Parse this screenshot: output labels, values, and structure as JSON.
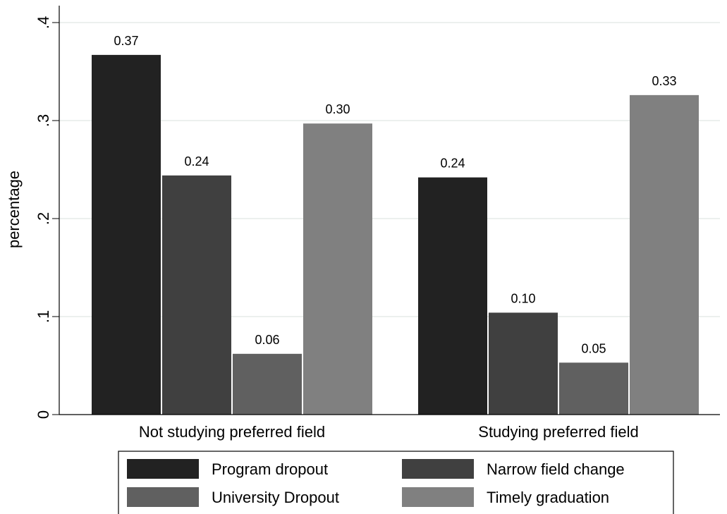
{
  "chart_data": {
    "type": "bar",
    "title": "",
    "xlabel": "",
    "ylabel": "percentage",
    "ylim": [
      0,
      0.42
    ],
    "yticks": [
      0,
      0.1,
      0.2,
      0.3,
      0.4
    ],
    "ytick_labels": [
      "0",
      ".1",
      ".2",
      ".3",
      ".4"
    ],
    "grid": true,
    "legend_position": "bottom",
    "categories": [
      "Not studying preferred field",
      "Studying preferred field"
    ],
    "series": [
      {
        "name": "Program dropout",
        "color": "#222222",
        "values": [
          0.367,
          0.242
        ],
        "labels": [
          "0.37",
          "0.24"
        ]
      },
      {
        "name": "Narrow field change",
        "color": "#404040",
        "values": [
          0.244,
          0.104
        ],
        "labels": [
          "0.24",
          "0.10"
        ]
      },
      {
        "name": "University Dropout",
        "color": "#606060",
        "values": [
          0.062,
          0.053
        ],
        "labels": [
          "0.06",
          "0.05"
        ]
      },
      {
        "name": "Timely graduation",
        "color": "#808080",
        "values": [
          0.297,
          0.326
        ],
        "labels": [
          "0.30",
          "0.33"
        ]
      }
    ]
  }
}
